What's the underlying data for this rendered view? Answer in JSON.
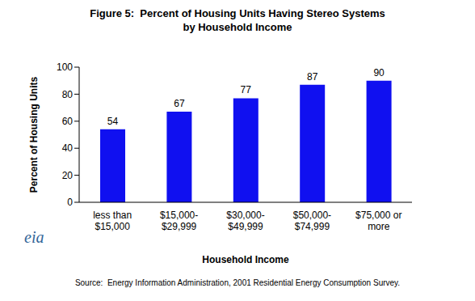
{
  "chart_data": {
    "type": "bar",
    "title": "Figure 5:  Percent of Housing Units Having Stereo Systems\nby Household Income",
    "x_label": "Household Income",
    "y_label": "Percent of Housing Units",
    "categories": [
      "less than\n$15,000",
      "$15,000-\n$29,999",
      "$30,000-\n$49,999",
      "$50,000-\n$74,999",
      "$75,000 or\nmore"
    ],
    "values": [
      54,
      67,
      77,
      87,
      90
    ],
    "color": "#1010f0",
    "ylim": [
      0,
      100
    ],
    "yticks": [
      0,
      20,
      40,
      60,
      80,
      100
    ],
    "grid": false,
    "data_labels": true,
    "logo": "eia",
    "source": "Source:  Energy Information Administration, 2001 Residential Energy Consumption Survey."
  }
}
